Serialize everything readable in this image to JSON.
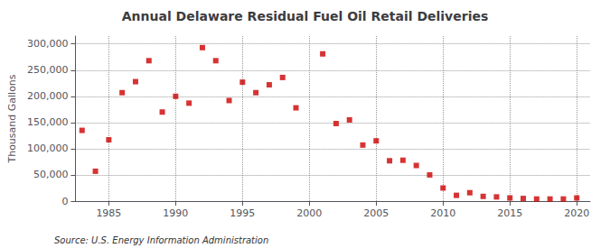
{
  "chart_data": {
    "type": "scatter",
    "title": "Annual Delaware Residual Fuel Oil Retail Deliveries",
    "ylabel": "Thousand Gallons",
    "annotations": [
      "Source: U.S. Energy Information Administration"
    ],
    "x": [
      1983,
      1984,
      1985,
      1986,
      1987,
      1988,
      1989,
      1990,
      1991,
      1992,
      1993,
      1994,
      1995,
      1996,
      1997,
      1998,
      1999,
      2001,
      2002,
      2003,
      2004,
      2005,
      2006,
      2007,
      2008,
      2009,
      2010,
      2011,
      2012,
      2013,
      2014,
      2015,
      2016,
      2017,
      2018,
      2019,
      2020
    ],
    "values": [
      135000,
      57000,
      117000,
      207000,
      228000,
      268000,
      170000,
      200000,
      187000,
      293000,
      268000,
      192000,
      227000,
      207000,
      222000,
      236000,
      178000,
      281000,
      148000,
      155000,
      107000,
      115000,
      77000,
      78000,
      68000,
      50000,
      25000,
      11000,
      16000,
      9000,
      8000,
      6000,
      5000,
      4000,
      4000,
      4000,
      6000
    ],
    "color": "#cc0000",
    "marker": "square",
    "xlim": [
      1982.5,
      2021
    ],
    "xticks": [
      1985,
      1990,
      1995,
      2000,
      2005,
      2010,
      2015,
      2020
    ],
    "ylim": [
      0,
      315000
    ],
    "yticks": [
      0,
      {
        "value": 50000,
        "label": "50,000"
      },
      {
        "value": 100000,
        "label": "100,000"
      },
      {
        "value": 150000,
        "label": "150,000"
      },
      {
        "value": 200000,
        "label": "200,000"
      },
      {
        "value": 250000,
        "label": "250,000"
      },
      {
        "value": 300000,
        "label": "300,000"
      }
    ],
    "grid": true
  }
}
